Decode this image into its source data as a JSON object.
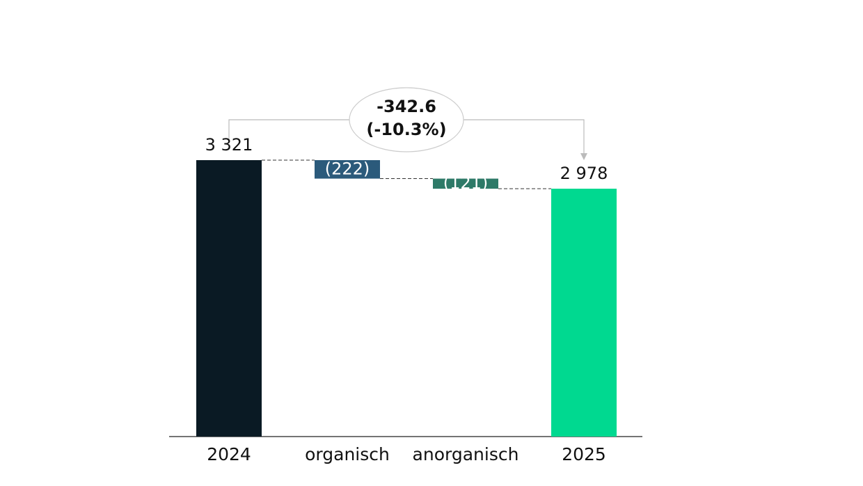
{
  "chart_data": {
    "type": "waterfall",
    "categories": [
      "2024",
      "organisch",
      "anorganisch",
      "2025"
    ],
    "values": [
      3321,
      -222,
      -121,
      2978
    ],
    "value_labels": [
      "3 321",
      "(222)",
      "(121)",
      "2 978"
    ],
    "measure": [
      "absolute",
      "relative",
      "relative",
      "absolute"
    ],
    "colors": [
      "#0a1a24",
      "#2b5a7b",
      "#2e7a68",
      "#00d990"
    ],
    "annotation": [
      "-342.6",
      "(-10.3%)"
    ]
  }
}
